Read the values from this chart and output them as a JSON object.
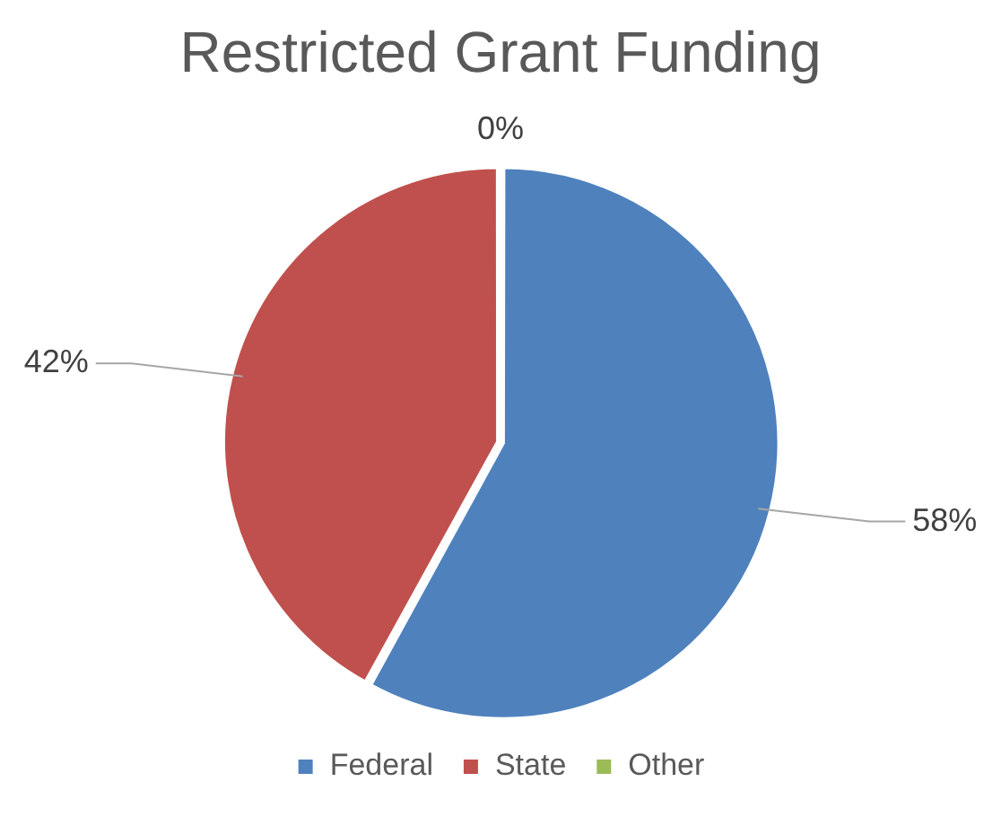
{
  "chart_data": {
    "type": "pie",
    "title": "Restricted Grant Funding",
    "categories": [
      "Federal",
      "State",
      "Other"
    ],
    "values": [
      58,
      42,
      0
    ],
    "colors": [
      "#4f81bd",
      "#c0504d",
      "#9bbb59"
    ],
    "value_labels": [
      "58%",
      "42%",
      "0%"
    ],
    "legend": "bottom"
  }
}
